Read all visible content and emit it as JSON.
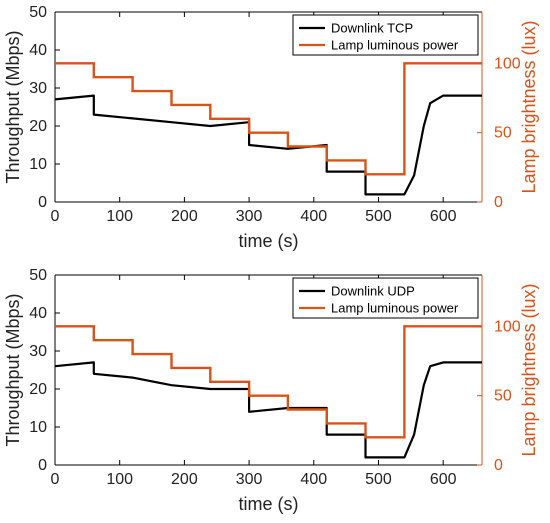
{
  "colors": {
    "throughput": "#000000",
    "lamp": "#d95319"
  },
  "chart_data": [
    {
      "type": "line",
      "xlabel": "time (s)",
      "ylabel": "Throughput (Mbps)",
      "ylabel_right": "Lamp brightness (lux)",
      "xlim": [
        0,
        660
      ],
      "ylim": [
        0,
        50
      ],
      "ylim_right": [
        0,
        137
      ],
      "xticks": [
        "0",
        "100",
        "200",
        "300",
        "400",
        "500",
        "600"
      ],
      "yticks": [
        "0",
        "10",
        "20",
        "30",
        "40",
        "50"
      ],
      "yticks_right": [
        "0",
        "50",
        "100"
      ],
      "legend_position": "top-right",
      "series": [
        {
          "name": "Downlink TCP",
          "axis": "left",
          "x": [
            0,
            60,
            60,
            120,
            180,
            240,
            300,
            300,
            360,
            420,
            420,
            480,
            480,
            540,
            555,
            570,
            580,
            600,
            660
          ],
          "y": [
            27,
            28,
            23,
            22,
            21,
            20,
            21,
            15,
            14,
            15,
            8,
            8,
            2,
            2,
            7,
            20,
            26,
            28,
            28
          ]
        },
        {
          "name": "Lamp luminous power",
          "axis": "right",
          "x": [
            0,
            60,
            60,
            120,
            120,
            180,
            180,
            240,
            240,
            300,
            300,
            360,
            360,
            420,
            420,
            480,
            480,
            540,
            540,
            660
          ],
          "y": [
            100,
            100,
            90,
            90,
            80,
            80,
            70,
            70,
            60,
            60,
            50,
            50,
            40,
            40,
            30,
            30,
            20,
            20,
            100,
            100
          ]
        }
      ]
    },
    {
      "type": "line",
      "xlabel": "time (s)",
      "ylabel": "Throughput (Mbps)",
      "ylabel_right": "Lamp brightness (lux)",
      "xlim": [
        0,
        660
      ],
      "ylim": [
        0,
        50
      ],
      "ylim_right": [
        0,
        137
      ],
      "xticks": [
        "0",
        "100",
        "200",
        "300",
        "400",
        "500",
        "600"
      ],
      "yticks": [
        "0",
        "10",
        "20",
        "30",
        "40",
        "50"
      ],
      "yticks_right": [
        "0",
        "50",
        "100"
      ],
      "legend_position": "top-right",
      "series": [
        {
          "name": "Downlink UDP",
          "axis": "left",
          "x": [
            0,
            60,
            60,
            120,
            180,
            240,
            300,
            300,
            360,
            420,
            420,
            480,
            480,
            540,
            555,
            570,
            580,
            600,
            660
          ],
          "y": [
            26,
            27,
            24,
            23,
            21,
            20,
            20,
            14,
            15,
            15,
            8,
            8,
            2,
            2,
            8,
            21,
            26,
            27,
            27
          ]
        },
        {
          "name": "Lamp luminous power",
          "axis": "right",
          "x": [
            0,
            60,
            60,
            120,
            120,
            180,
            180,
            240,
            240,
            300,
            300,
            360,
            360,
            420,
            420,
            480,
            480,
            540,
            540,
            660
          ],
          "y": [
            100,
            100,
            90,
            90,
            80,
            80,
            70,
            70,
            60,
            60,
            50,
            50,
            40,
            40,
            30,
            30,
            20,
            20,
            100,
            100
          ]
        }
      ]
    }
  ]
}
